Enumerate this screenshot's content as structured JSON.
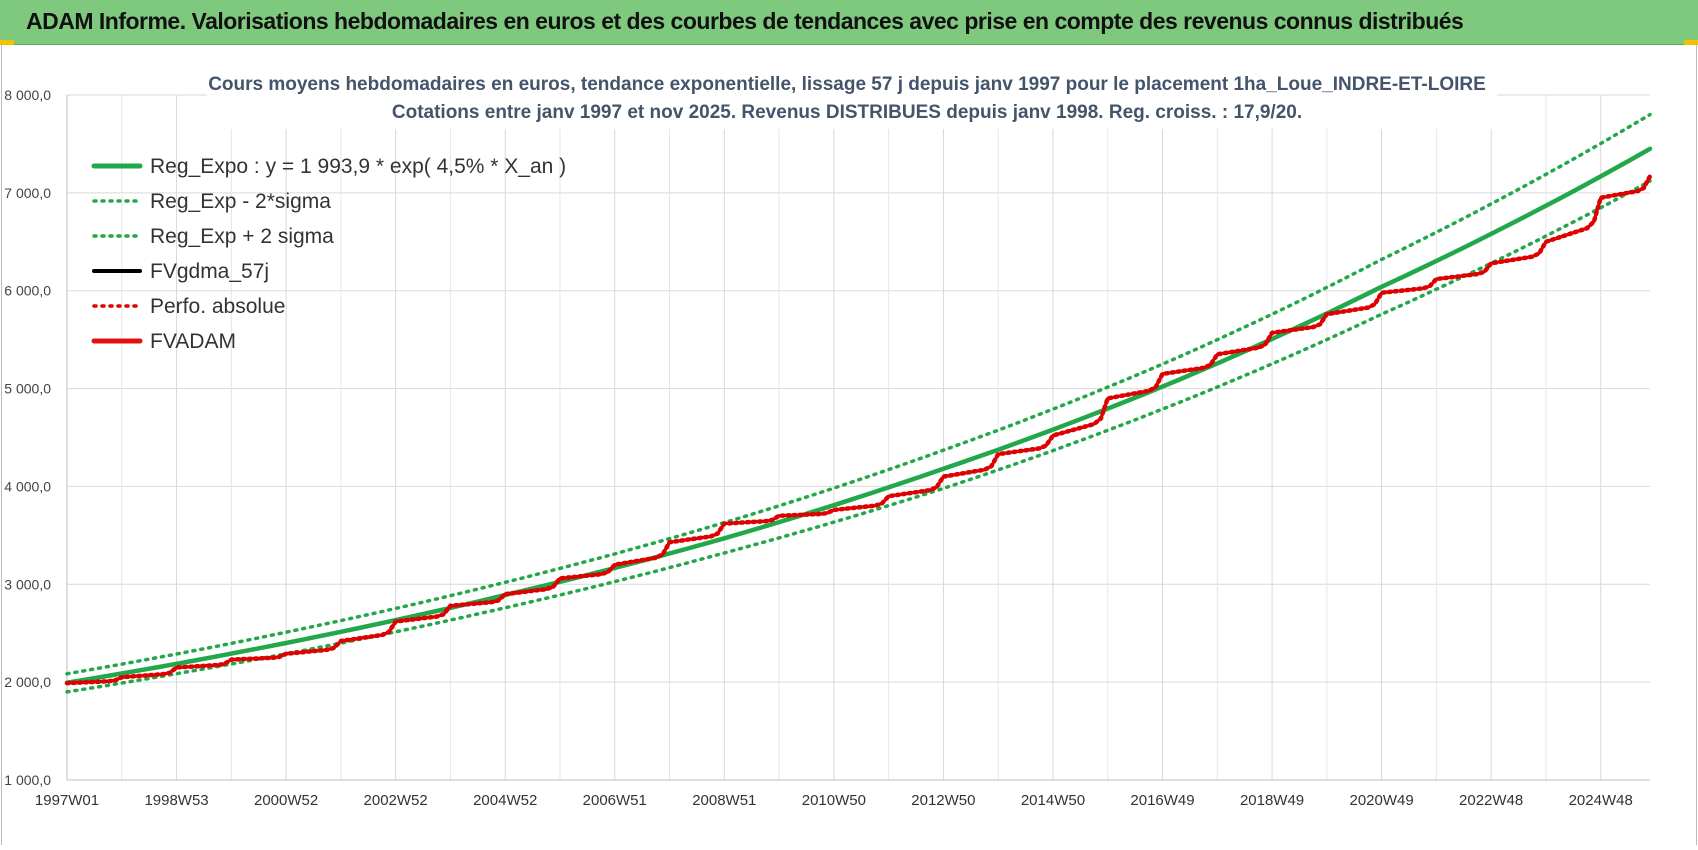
{
  "header": {
    "title": "ADAM Informe. Valorisations hebdomadaires en euros et des courbes de tendances avec prise en compte des revenus connus distribués"
  },
  "chart_data": {
    "type": "line",
    "title": "Cours moyens hebdomadaires en euros, tendance exponentielle, lissage 57 j depuis janv 1997  pour le placement 1ha_Loue_INDRE-ET-LOIRE",
    "subtitle": "Cotations entre janv 1997 et nov 2025. Revenus  DISTRIBUES depuis janv 1998.  Reg. croiss. : 17,9/20.",
    "xlabel": "",
    "ylabel": "",
    "ylim": [
      1000,
      8000
    ],
    "xlim": [
      1997.0,
      2025.9
    ],
    "y_ticks": [
      "1 000,0",
      "2 000,0",
      "3 000,0",
      "4 000,0",
      "5 000,0",
      "6 000,0",
      "7 000,0",
      "8 000,0"
    ],
    "y_tick_values": [
      1000,
      2000,
      3000,
      4000,
      5000,
      6000,
      7000,
      8000
    ],
    "x_ticks": [
      "1997W01",
      "1998W53",
      "2000W52",
      "2002W52",
      "2004W52",
      "2006W51",
      "2008W51",
      "2010W50",
      "2012W50",
      "2014W50",
      "2016W49",
      "2018W49",
      "2020W49",
      "2022W48",
      "2024W48"
    ],
    "x_tick_values": [
      1997.0,
      1999.0,
      2001.0,
      2003.0,
      2005.0,
      2007.0,
      2009.0,
      2011.0,
      2013.0,
      2015.0,
      2017.0,
      2019.0,
      2021.0,
      2023.0,
      2025.0
    ],
    "grid": true,
    "legend_position": "top-left",
    "series": [
      {
        "name": "Reg_Expo : y = 1 993,9 * exp( 4,5% *  X_an )",
        "color": "#22a84a",
        "style": "solid",
        "x": [
          1997.0,
          2001.0,
          2005.0,
          2009.0,
          2013.0,
          2017.0,
          2021.0,
          2025.9
        ],
        "values": [
          1994,
          2400,
          2890,
          3470,
          4180,
          5020,
          6040,
          7450
        ]
      },
      {
        "name": "Reg_Exp - 2*sigma",
        "color": "#22a84a",
        "style": "dotted",
        "x": [
          1997.0,
          2001.0,
          2005.0,
          2009.0,
          2013.0,
          2017.0,
          2021.0,
          2025.9
        ],
        "values": [
          1900,
          2290,
          2760,
          3320,
          3980,
          4790,
          5760,
          7120
        ]
      },
      {
        "name": "Reg_Exp + 2 sigma",
        "color": "#22a84a",
        "style": "dotted",
        "x": [
          1997.0,
          2001.0,
          2005.0,
          2009.0,
          2013.0,
          2017.0,
          2021.0,
          2025.9
        ],
        "values": [
          2085,
          2510,
          3020,
          3630,
          4370,
          5250,
          6320,
          7800
        ]
      },
      {
        "name": "FVgdma_57j",
        "color": "#000000",
        "style": "solid",
        "x": [
          1997.0,
          1998.0,
          1999.0,
          2000.0,
          2001.0,
          2002.0,
          2003.0,
          2004.0,
          2005.0,
          2006.0,
          2007.0,
          2008.0,
          2009.0,
          2010.0,
          2011.0,
          2012.0,
          2013.0,
          2014.0,
          2015.0,
          2016.0,
          2017.0,
          2018.0,
          2019.0,
          2020.0,
          2021.0,
          2022.0,
          2023.0,
          2024.0,
          2025.0,
          2025.9
        ],
        "values": [
          1990,
          2050,
          2150,
          2230,
          2290,
          2420,
          2620,
          2780,
          2900,
          3060,
          3200,
          3430,
          3620,
          3700,
          3760,
          3900,
          4100,
          4330,
          4520,
          4900,
          5150,
          5350,
          5570,
          5760,
          5980,
          6120,
          6280,
          6500,
          6950,
          7170
        ]
      },
      {
        "name": "Perfo. absolue",
        "color": "#e00000",
        "style": "dotted",
        "x": [
          1997.0,
          1998.0,
          1999.0,
          2000.0,
          2001.0,
          2002.0,
          2003.0,
          2004.0,
          2005.0,
          2006.0,
          2007.0,
          2008.0,
          2009.0,
          2010.0,
          2011.0,
          2012.0,
          2013.0,
          2014.0,
          2015.0,
          2016.0,
          2017.0,
          2018.0,
          2019.0,
          2020.0,
          2021.0,
          2022.0,
          2023.0,
          2024.0,
          2025.0,
          2025.9
        ],
        "values": [
          1990,
          2050,
          2150,
          2230,
          2290,
          2420,
          2620,
          2780,
          2900,
          3060,
          3200,
          3430,
          3620,
          3700,
          3760,
          3900,
          4100,
          4330,
          4520,
          4900,
          5150,
          5350,
          5570,
          5760,
          5980,
          6120,
          6280,
          6500,
          6950,
          7170
        ]
      },
      {
        "name": "FVADAM",
        "color": "#e31010",
        "style": "solid",
        "x": [
          1997.0,
          1998.0,
          1999.0,
          2000.0,
          2001.0,
          2002.0,
          2003.0,
          2004.0,
          2005.0,
          2006.0,
          2007.0,
          2008.0,
          2009.0,
          2010.0,
          2011.0,
          2012.0,
          2013.0,
          2014.0,
          2015.0,
          2016.0,
          2017.0,
          2018.0,
          2019.0,
          2020.0,
          2021.0,
          2022.0,
          2023.0,
          2024.0,
          2025.0,
          2025.9
        ],
        "values": [
          1990,
          2050,
          2150,
          2230,
          2290,
          2420,
          2620,
          2780,
          2900,
          3060,
          3200,
          3430,
          3620,
          3700,
          3760,
          3900,
          4100,
          4330,
          4520,
          4900,
          5150,
          5350,
          5570,
          5760,
          5980,
          6120,
          6280,
          6500,
          6950,
          7170
        ]
      }
    ]
  }
}
